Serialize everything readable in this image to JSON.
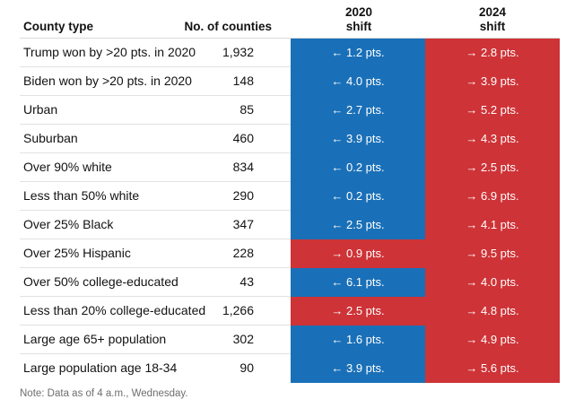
{
  "header": {
    "county_type": "County type",
    "num_counties": "No. of counties",
    "shift_2020_year": "2020",
    "shift_2020_word": "shift",
    "shift_2024_year": "2024",
    "shift_2024_word": "shift"
  },
  "colors": {
    "dem_blue": "#1a70b8",
    "rep_red": "#ce3337"
  },
  "rows": [
    {
      "label": "Trump won by >20 pts. in 2020",
      "count": "1,932",
      "shift2020": "← 1.2 pts.",
      "dir2020": "dem",
      "shift2024": "→ 2.8 pts.",
      "dir2024": "rep"
    },
    {
      "label": "Biden won by >20 pts. in 2020",
      "count": "148",
      "shift2020": "← 4.0 pts.",
      "dir2020": "dem",
      "shift2024": "→ 3.9 pts.",
      "dir2024": "rep"
    },
    {
      "label": "Urban",
      "count": "85",
      "shift2020": "← 2.7 pts.",
      "dir2020": "dem",
      "shift2024": "→ 5.2 pts.",
      "dir2024": "rep"
    },
    {
      "label": "Suburban",
      "count": "460",
      "shift2020": "← 3.9 pts.",
      "dir2020": "dem",
      "shift2024": "→ 4.3 pts.",
      "dir2024": "rep"
    },
    {
      "label": "Over 90% white",
      "count": "834",
      "shift2020": "← 0.2 pts.",
      "dir2020": "dem",
      "shift2024": "→ 2.5 pts.",
      "dir2024": "rep"
    },
    {
      "label": "Less than 50% white",
      "count": "290",
      "shift2020": "← 0.2 pts.",
      "dir2020": "dem",
      "shift2024": "→ 6.9 pts.",
      "dir2024": "rep"
    },
    {
      "label": "Over 25% Black",
      "count": "347",
      "shift2020": "← 2.5 pts.",
      "dir2020": "dem",
      "shift2024": "→ 4.1 pts.",
      "dir2024": "rep"
    },
    {
      "label": "Over 25% Hispanic",
      "count": "228",
      "shift2020": "→ 0.9 pts.",
      "dir2020": "rep",
      "shift2024": "→ 9.5 pts.",
      "dir2024": "rep"
    },
    {
      "label": "Over 50% college-educated",
      "count": "43",
      "shift2020": "← 6.1 pts.",
      "dir2020": "dem",
      "shift2024": "→ 4.0 pts.",
      "dir2024": "rep"
    },
    {
      "label": "Less than 20% college-educated",
      "count": "1,266",
      "shift2020": "→ 2.5 pts.",
      "dir2020": "rep",
      "shift2024": "→ 4.8 pts.",
      "dir2024": "rep"
    },
    {
      "label": "Large age 65+ population",
      "count": "302",
      "shift2020": "← 1.6 pts.",
      "dir2020": "dem",
      "shift2024": "→ 4.9 pts.",
      "dir2024": "rep"
    },
    {
      "label": "Large population age 18-34",
      "count": "90",
      "shift2020": "← 3.9 pts.",
      "dir2020": "dem",
      "shift2024": "→ 5.6 pts.",
      "dir2024": "rep"
    }
  ],
  "note": "Note: Data as of 4 a.m., Wednesday."
}
